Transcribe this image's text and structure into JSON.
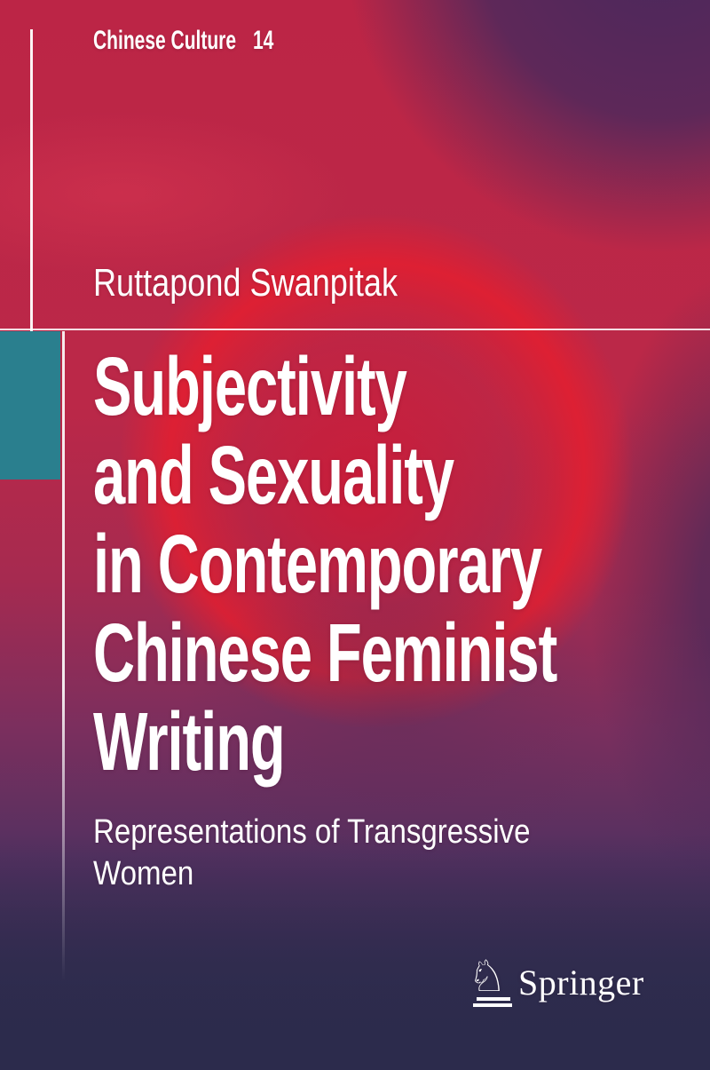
{
  "cover": {
    "series": {
      "label": "Chinese Culture",
      "volume": "14"
    },
    "author": "Ruttapond Swanpitak",
    "title_lines": [
      "Subjectivity",
      "and Sexuality",
      "in Contemporary",
      "Chinese Feminist",
      "Writing"
    ],
    "subtitle_lines": [
      "Representations of Transgressive",
      "Women"
    ],
    "publisher": {
      "name": "Springer",
      "horse_glyph": "♘"
    },
    "colors": {
      "accent_teal": "#2a7f8e",
      "text_white": "#ffffff",
      "cover_red": "#bc2546",
      "cover_purple": "#543060",
      "cover_navy": "#2c2b4c"
    }
  }
}
